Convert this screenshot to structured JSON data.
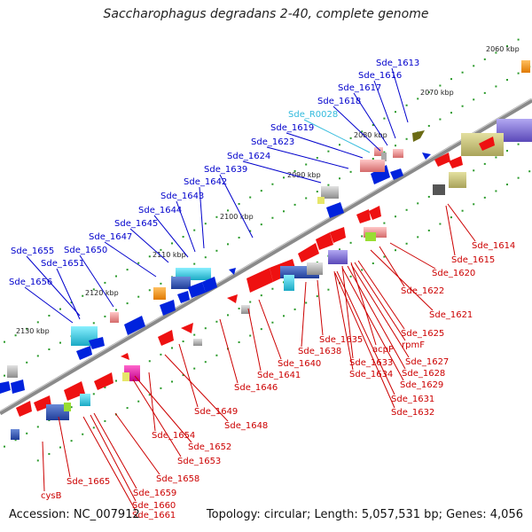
{
  "title": "Saccharophagus degradans 2-40, complete genome",
  "footer": {
    "accession": "Accession: NC_007912",
    "topology": "Topology: circular; Length: 5,057,531 bp; Genes: 4,056"
  },
  "ticks": [
    "2060 kbp",
    "2070 kbp",
    "2080 kbp",
    "2090 kbp",
    "2100 kbp",
    "2110 kbp",
    "2120 kbp",
    "2130 kbp"
  ],
  "upper_labels": [
    "Sde_1613",
    "Sde_1616",
    "Sde_1617",
    "Sde_1618",
    "Sde_R0028",
    "Sde_1619",
    "Sde_1623",
    "Sde_1624",
    "Sde_1639",
    "Sde_1642",
    "Sde_1643",
    "Sde_1644",
    "Sde_1645",
    "Sde_1647",
    "Sde_1650",
    "Sde_1655",
    "Sde_1651",
    "Sde_1656"
  ],
  "lower_labels": [
    "Sde_1614",
    "Sde_1615",
    "Sde_1620",
    "Sde_1622",
    "Sde_1621",
    "Sde_1625",
    "rpmF",
    "acpP",
    "Sde_1635",
    "Sde_1638",
    "Sde_1627",
    "Sde_1633",
    "Sde_1628",
    "Sde_1634",
    "Sde_1629",
    "Sde_1640",
    "Sde_1641",
    "Sde_1631",
    "Sde_1632",
    "Sde_1646",
    "Sde_1649",
    "Sde_1648",
    "Sde_1654",
    "Sde_1652",
    "Sde_1653",
    "Sde_1658",
    "Sde_1665",
    "Sde_1659",
    "cysB",
    "Sde_1660",
    "Sde_1661"
  ],
  "colors": {
    "forward_label": "#0000cc",
    "rna_label": "#33bbdd",
    "reverse_label": "#cc0000",
    "backbone": "#8a8a8a",
    "forward_cds": "#0022dd",
    "reverse_cds": "#ee1111"
  }
}
